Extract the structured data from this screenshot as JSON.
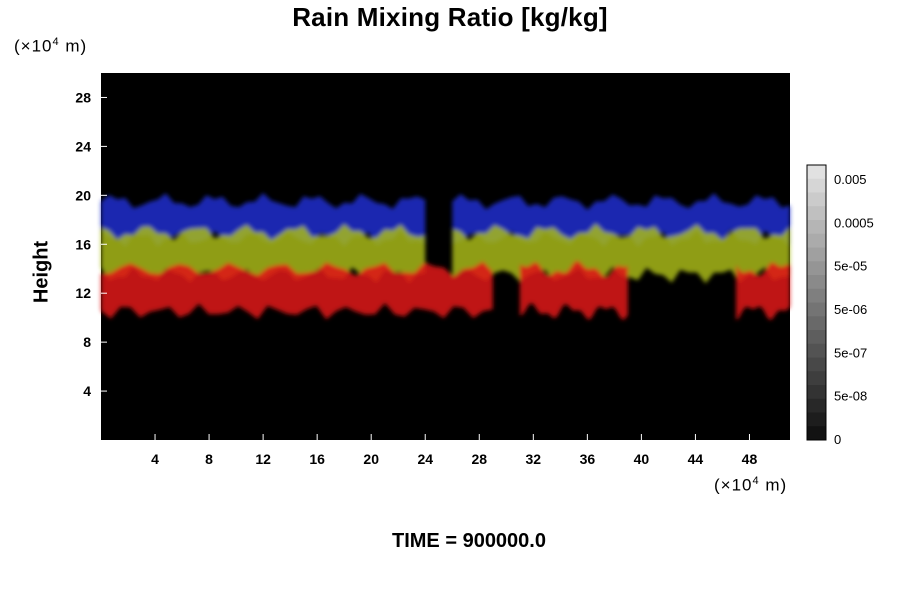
{
  "chart_data": {
    "type": "heatmap",
    "title": "Rain Mixing Ratio [kg/kg]",
    "ylabel": "Height",
    "x_unit": {
      "prefix": "(×10",
      "exp": "4",
      "suffix": " m)"
    },
    "y_unit": {
      "prefix": "(×10",
      "exp": "4",
      "suffix": " m)"
    },
    "xlim": [
      0,
      51
    ],
    "ylim": [
      0,
      30
    ],
    "x_ticks": [
      4,
      8,
      12,
      16,
      20,
      24,
      28,
      32,
      36,
      40,
      44,
      48
    ],
    "y_ticks": [
      4,
      8,
      12,
      16,
      20,
      24,
      28
    ],
    "background_color": "#000000",
    "layers": [
      {
        "color": "#1e2fcf",
        "y_range": [
          16.5,
          19.5
        ],
        "x_segments": [
          [
            0,
            24
          ],
          [
            26,
            51
          ]
        ]
      },
      {
        "color": "#a8b81a",
        "y_range": [
          13.5,
          17.0
        ],
        "x_segments": [
          [
            0,
            24
          ],
          [
            26,
            51
          ]
        ]
      },
      {
        "color": "#e01414",
        "y_range": [
          10.5,
          14.0
        ],
        "x_segments": [
          [
            0,
            29
          ],
          [
            31,
            39
          ],
          [
            47,
            51
          ]
        ]
      }
    ],
    "colorbar": {
      "tick_labels": [
        "0.005",
        "0.0005",
        "5e-05",
        "5e-06",
        "5e-07",
        "5e-08",
        "0"
      ],
      "levels": 20
    }
  },
  "footer": {
    "time_label": "TIME = 900000.0"
  }
}
